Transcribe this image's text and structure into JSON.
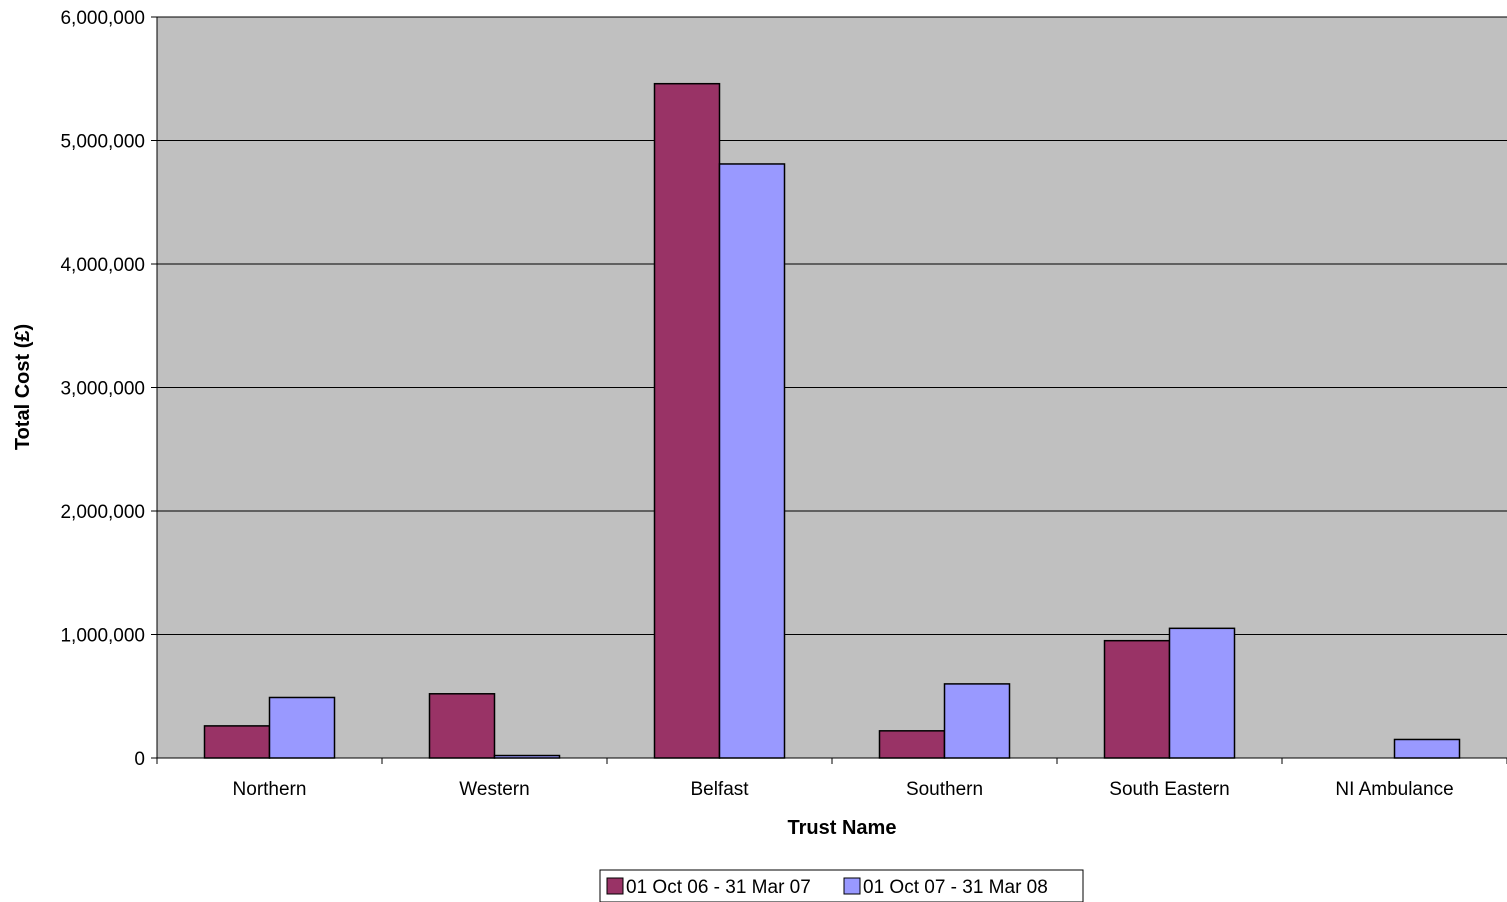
{
  "chart_data": {
    "type": "bar",
    "title": "",
    "xlabel": "Trust Name",
    "ylabel": "Total Cost (£)",
    "ylim": [
      0,
      6000000
    ],
    "yticks": [
      0,
      1000000,
      2000000,
      3000000,
      4000000,
      5000000,
      6000000
    ],
    "ytick_labels": [
      "0",
      "1,000,000",
      "2,000,000",
      "3,000,000",
      "4,000,000",
      "5,000,000",
      "6,000,000"
    ],
    "grid": true,
    "legend_position": "bottom-center",
    "plot_background": "#C0C0C0",
    "categories": [
      "Northern",
      "Western",
      "Belfast",
      "Southern",
      "South Eastern",
      "NI Ambulance"
    ],
    "series": [
      {
        "name": "01 Oct 06 - 31 Mar 07",
        "color": "#993366",
        "values": [
          260000,
          520000,
          5460000,
          220000,
          950000,
          0
        ]
      },
      {
        "name": "01 Oct 07 - 31 Mar 08",
        "color": "#9999FF",
        "values": [
          490000,
          20000,
          4810000,
          600000,
          1050000,
          150000
        ]
      }
    ]
  }
}
